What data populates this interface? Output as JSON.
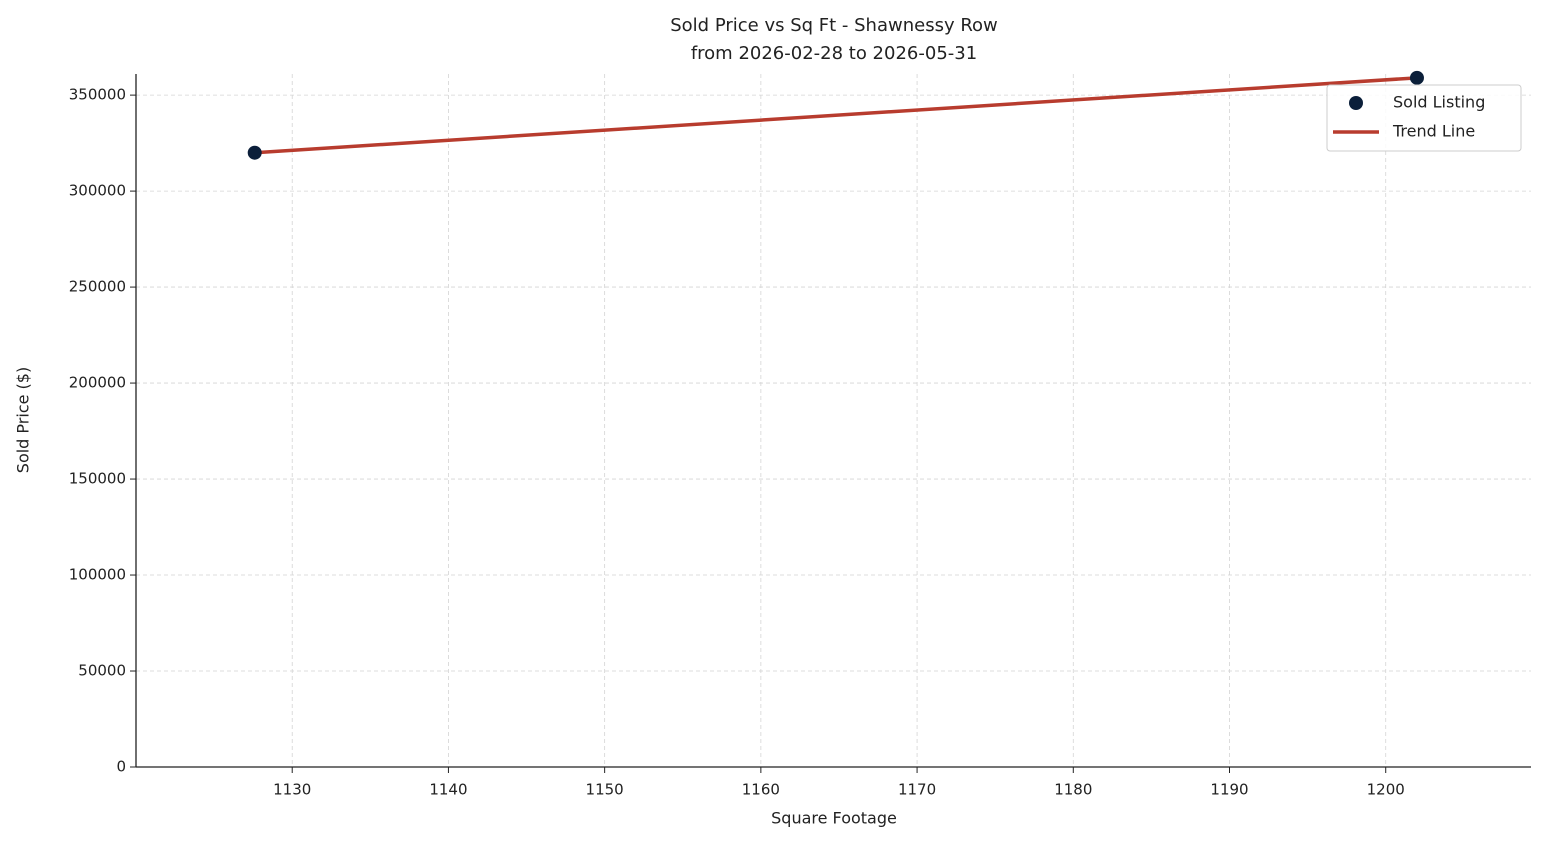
{
  "chart_data": {
    "type": "scatter",
    "title": "Sold Price vs Sq Ft - Shawnessy Row",
    "subtitle": "from 2026-02-28 to 2026-05-31",
    "x_label": "Square Footage",
    "y_label": "Sold Price ($)",
    "series": [
      {
        "name": "Sold Listing",
        "type": "scatter",
        "color": "#0b1f3a",
        "x": [
          1127.6,
          1202
        ],
        "values": [
          320000,
          359000
        ]
      },
      {
        "name": "Trend Line",
        "type": "line",
        "color": "#b83c2e",
        "x": [
          1127.6,
          1202
        ],
        "values": [
          320000,
          359000
        ]
      }
    ],
    "xlim": [
      1120,
      1209.3
    ],
    "ylim": [
      0,
      361000
    ],
    "xticks": [
      1130,
      1140,
      1150,
      1160,
      1170,
      1180,
      1190,
      1200
    ],
    "yticks": [
      0,
      50000,
      100000,
      150000,
      200000,
      250000,
      300000,
      350000
    ],
    "grid": true,
    "legend": "upper right"
  }
}
